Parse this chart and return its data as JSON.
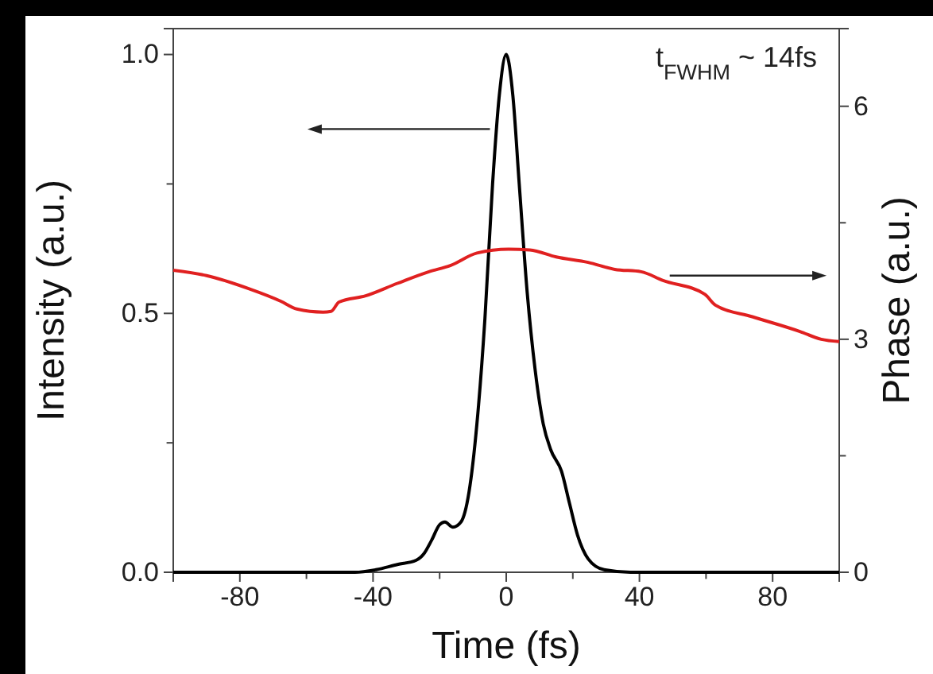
{
  "chart_data": {
    "type": "line",
    "xlabel": "Time (fs)",
    "ylabel": "Intensity (a.u.)",
    "y2label": "Phase (a.u.)",
    "xlim": [
      -100,
      100
    ],
    "xticks": [
      -80,
      {
        "value": -60,
        "label": null
      },
      -40,
      {
        "value": -20,
        "label": null
      },
      0,
      {
        "value": 20,
        "label": null
      },
      40,
      {
        "value": 60,
        "label": null
      },
      80
    ],
    "ylim": [
      0,
      1.05
    ],
    "yticks": [
      {
        "value": 0,
        "label": "0.0"
      },
      {
        "value": 0.25,
        "label": null
      },
      0.5,
      {
        "value": 0.75,
        "label": null
      },
      {
        "value": 1,
        "label": "1.0"
      }
    ],
    "y2lim": [
      0,
      7
    ],
    "y2ticks": [
      0,
      {
        "value": 1.5,
        "label": null
      },
      3,
      {
        "value": 4.5,
        "label": null
      },
      6
    ],
    "marker": "none",
    "line_style": "solid",
    "annotations": [
      "t$_{FWHM}$ ~ 14fs"
    ],
    "series": [
      {
        "color": "#000000",
        "x": [
          -100,
          -60,
          -45.4,
          -39.1,
          -32.7,
          -27.1,
          -24.7,
          -22.4,
          -20.0,
          -18.4,
          -16.0,
          -13.6,
          -11.2,
          -8.8,
          -6.4,
          -4.1,
          -2.1,
          0,
          2.0,
          3.9,
          6.3,
          8.7,
          11.1,
          13.4,
          16.6,
          19.0,
          21.4,
          24.6,
          29.4,
          37.3,
          60,
          100
        ],
        "values": [
          0,
          0,
          0,
          0.005,
          0.015,
          0.023,
          0.036,
          0.062,
          0.092,
          0.097,
          0.087,
          0.097,
          0.154,
          0.287,
          0.49,
          0.75,
          0.92,
          1.0,
          0.92,
          0.75,
          0.54,
          0.39,
          0.287,
          0.236,
          0.195,
          0.133,
          0.072,
          0.026,
          0.005,
          0,
          0,
          0
        ]
      },
      {
        "color": "#e02020",
        "axis": "y2",
        "x": [
          -100,
          -90,
          -77.2,
          -67.7,
          -62.9,
          -55,
          -52.6,
          -50.2,
          -42.2,
          -32.7,
          -23.2,
          -16.8,
          -8.8,
          0.7,
          7.1,
          15,
          24.6,
          32.6,
          40.5,
          46.9,
          59.6,
          62.8,
          73.9,
          88.2,
          94.6,
          100
        ],
        "values": [
          3.89,
          3.82,
          3.65,
          3.49,
          3.39,
          3.35,
          3.36,
          3.48,
          3.56,
          3.72,
          3.87,
          3.95,
          4.11,
          4.16,
          4.15,
          4.06,
          3.99,
          3.9,
          3.87,
          3.76,
          3.58,
          3.44,
          3.29,
          3.1,
          3.0,
          2.97
        ]
      }
    ]
  }
}
